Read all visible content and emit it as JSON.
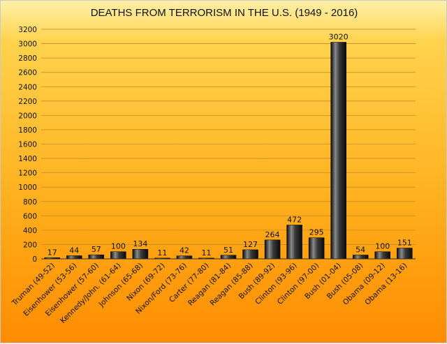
{
  "chart_data": {
    "type": "bar",
    "title": "DEATHS FROM TERRORISM IN THE U.S. (1949 - 2016)",
    "xlabel": "",
    "ylabel": "",
    "ylim": [
      0,
      3200
    ],
    "yticks": [
      0,
      200,
      400,
      600,
      800,
      1000,
      1200,
      1400,
      1600,
      1800,
      2000,
      2200,
      2400,
      2600,
      2800,
      3000,
      3200
    ],
    "grid": true,
    "categories": [
      "Truman (49-52)",
      "Eisenhower (53-56)",
      "Eisenhower (57-60)",
      "Kennedy/John. (61-64)",
      "Johnson (65-68)",
      "Nixon (69-72)",
      "Nixon/Ford (73-76)",
      "Carter (77-80)",
      "Reagan (81-84)",
      "Reagan (85-88)",
      "Bush (89-92)",
      "Clinton (93-96)",
      "Clinton (97-00)",
      "Bush (01-04)",
      "Bush (05-08)",
      "Obama (09-12)",
      "Obama (13-16)"
    ],
    "values": [
      17,
      44,
      57,
      100,
      134,
      11,
      42,
      11,
      51,
      127,
      264,
      472,
      295,
      3020,
      54,
      100,
      151
    ],
    "colors": {
      "bar_dark": "#0a0a0a",
      "bar_mid": "#3a3a3a",
      "bar_light": "#8a8a8a",
      "grid": "#c98a2a",
      "axis": "#333333"
    }
  }
}
